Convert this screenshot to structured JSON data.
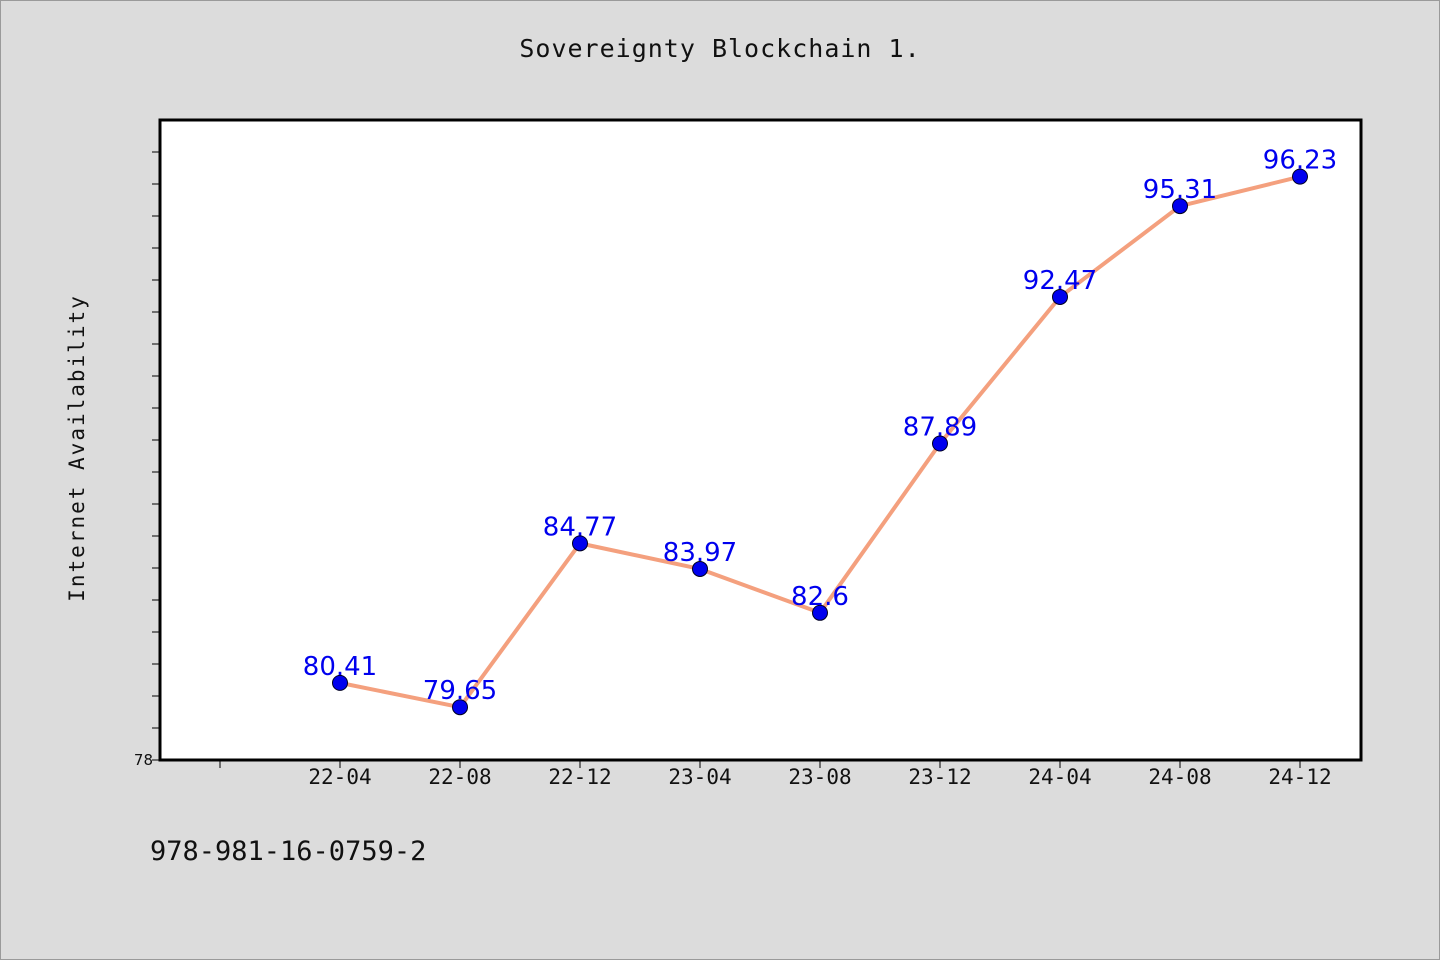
{
  "chart_data": {
    "type": "line",
    "title": "Sovereignty Blockchain 1.",
    "xlabel": "",
    "ylabel": "Internet Availability",
    "categories": [
      "22-04",
      "22-08",
      "22-12",
      "23-04",
      "23-08",
      "23-12",
      "24-04",
      "24-08",
      "24-12"
    ],
    "series": [
      {
        "values": [
          80.41,
          79.65,
          84.77,
          83.97,
          82.6,
          87.89,
          92.47,
          95.31,
          96.23
        ],
        "labels": [
          "80.41",
          "79.65",
          "84.77",
          "83.97",
          "82.6",
          "87.89",
          "92.47",
          "95.31",
          "96.23"
        ],
        "line_color": "#f4a07e",
        "marker_color": "#0000ee"
      }
    ],
    "ylim": [
      78,
      98
    ],
    "y_tick_labels": [
      "78"
    ],
    "grid": false,
    "legend": "none"
  },
  "footnote": "978-981-16-0759-2",
  "colors": {
    "background": "#dcdcdc",
    "plot_background": "#ffffff",
    "line": "#f4a07e",
    "marker": "#0000ee",
    "label": "#0000ee"
  }
}
